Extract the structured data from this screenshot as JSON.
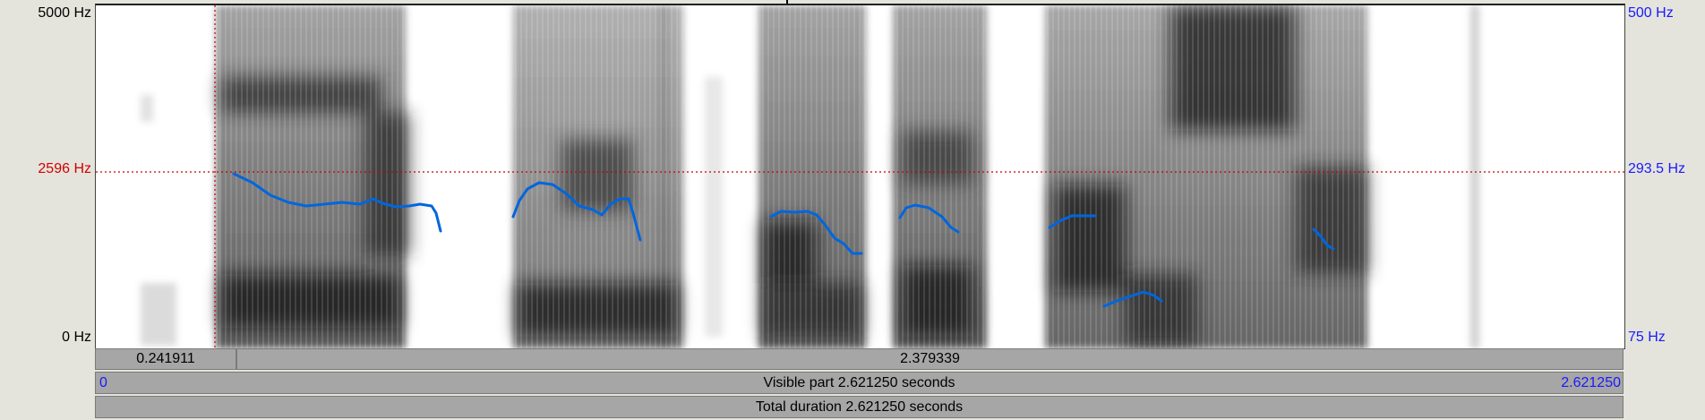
{
  "axis_left": {
    "top": "5000 Hz",
    "cursor": "2596 Hz",
    "bottom": "0 Hz"
  },
  "axis_right": {
    "top": "500 Hz",
    "cursor": "293.5 Hz",
    "bottom": "75 Hz"
  },
  "time_bar": {
    "left_segment": "0.241911",
    "right_segment": "2.379339"
  },
  "visible_bar": {
    "start": "0",
    "label": "Visible part 2.621250 seconds",
    "end": "2.621250"
  },
  "total_bar": {
    "label": "Total duration 2.621250 seconds"
  },
  "colors": {
    "pitch": "#0066dd",
    "cursor": "#cc0000",
    "right_axis": "#1a1aff"
  }
}
